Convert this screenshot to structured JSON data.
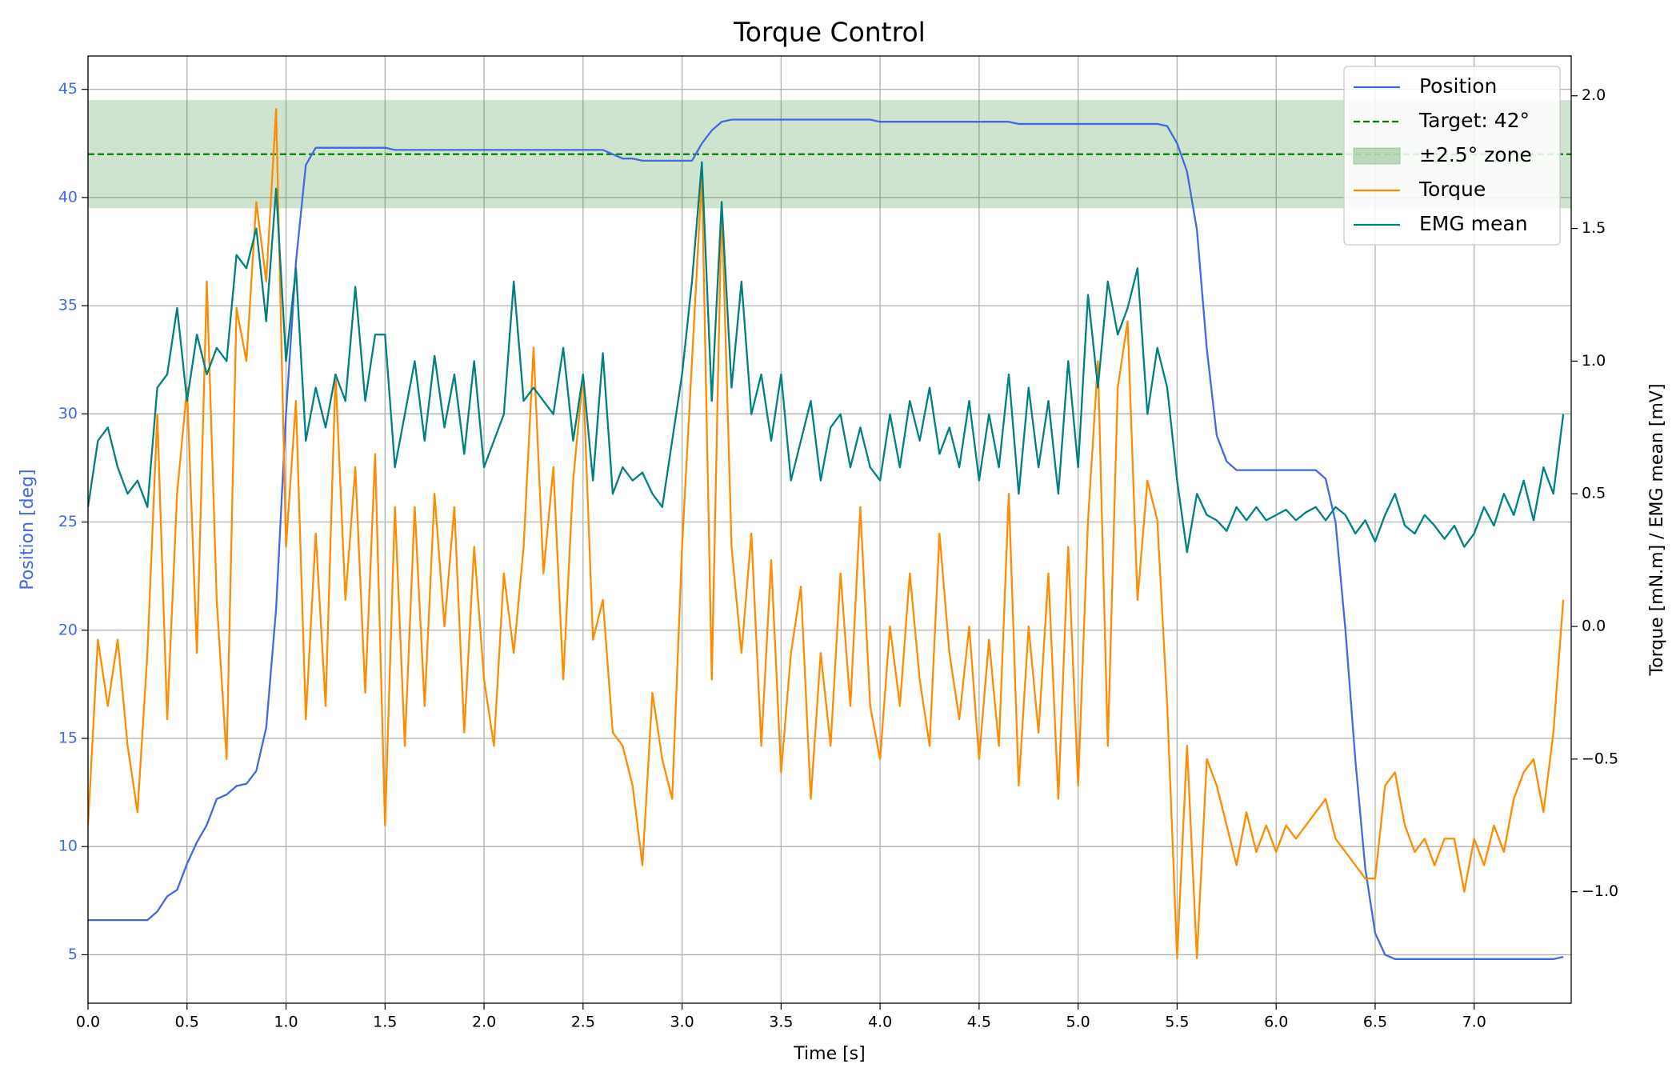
{
  "chart_data": {
    "type": "line",
    "title": "Torque Control",
    "xlabel": "Time [s]",
    "ylabel": "Position [deg]",
    "y2label": "Torque [mN.m] / EMG mean [mV]",
    "xlim": [
      0,
      7.49
    ],
    "ylim": [
      2.76,
      46.54
    ],
    "y2lim": [
      -1.42,
      2.15
    ],
    "xticks": [
      {
        "value": 0,
        "label": "0.0"
      },
      0.5,
      {
        "value": 1,
        "label": "1.0"
      },
      1.5,
      {
        "value": 2,
        "label": "2.0"
      },
      2.5,
      {
        "value": 3,
        "label": "3.0"
      },
      3.5,
      {
        "value": 4,
        "label": "4.0"
      },
      4.5,
      {
        "value": 5,
        "label": "5.0"
      },
      5.5,
      {
        "value": 6,
        "label": "6.0"
      },
      6.5,
      {
        "value": 7,
        "label": "7.0"
      }
    ],
    "yticks": [
      5,
      10,
      15,
      20,
      25,
      30,
      35,
      40,
      45
    ],
    "y2ticks": [
      {
        "value": -1,
        "label": "−1.0"
      },
      {
        "value": -0.5,
        "label": "−0.5"
      },
      {
        "value": 0,
        "label": "0.0"
      },
      0.5,
      {
        "value": 1,
        "label": "1.0"
      },
      1.5,
      {
        "value": 2,
        "label": "2.0"
      }
    ],
    "grid": true,
    "legend": "upper right",
    "zone": {
      "name": "±2.5° zone",
      "range": [
        39.5,
        44.5
      ],
      "color": "#2e8b2e"
    },
    "target": {
      "name": "Target: 42°",
      "value": 42,
      "color": "#008000"
    },
    "x": [
      0,
      0.05,
      0.1,
      0.15,
      0.2,
      0.25,
      0.3,
      0.35,
      0.4,
      0.45,
      0.5,
      0.55,
      0.6,
      0.65,
      0.7,
      0.75,
      0.8,
      0.85,
      0.9,
      0.95,
      1,
      1.05,
      1.1,
      1.15,
      1.2,
      1.25,
      1.3,
      1.35,
      1.4,
      1.45,
      1.5,
      1.55,
      1.6,
      1.65,
      1.7,
      1.75,
      1.8,
      1.85,
      1.9,
      1.95,
      2,
      2.05,
      2.1,
      2.15,
      2.2,
      2.25,
      2.3,
      2.35,
      2.4,
      2.45,
      2.5,
      2.55,
      2.6,
      2.65,
      2.7,
      2.75,
      2.8,
      2.85,
      2.9,
      2.95,
      3,
      3.05,
      3.1,
      3.15,
      3.2,
      3.25,
      3.3,
      3.35,
      3.4,
      3.45,
      3.5,
      3.55,
      3.6,
      3.65,
      3.7,
      3.75,
      3.8,
      3.85,
      3.9,
      3.95,
      4,
      4.05,
      4.1,
      4.15,
      4.2,
      4.25,
      4.3,
      4.35,
      4.4,
      4.45,
      4.5,
      4.55,
      4.6,
      4.65,
      4.7,
      4.75,
      4.8,
      4.85,
      4.9,
      4.95,
      5,
      5.05,
      5.1,
      5.15,
      5.2,
      5.25,
      5.3,
      5.35,
      5.4,
      5.45,
      5.5,
      5.55,
      5.6,
      5.65,
      5.7,
      5.75,
      5.8,
      5.85,
      5.9,
      5.95,
      6,
      6.05,
      6.1,
      6.15,
      6.2,
      6.25,
      6.3,
      6.35,
      6.4,
      6.45,
      6.5,
      6.55,
      6.6,
      6.65,
      6.7,
      6.75,
      6.8,
      6.85,
      6.9,
      6.95,
      7,
      7.05,
      7.1,
      7.15,
      7.2,
      7.25,
      7.3,
      7.35,
      7.4,
      7.45
    ],
    "series": [
      {
        "name": "Position",
        "color": "#4169e1",
        "axis": "y",
        "values": [
          6.6,
          6.6,
          6.6,
          6.6,
          6.6,
          6.6,
          6.6,
          7.0,
          7.7,
          8.0,
          9.2,
          10.2,
          11.0,
          12.2,
          12.4,
          12.8,
          12.9,
          13.5,
          15.5,
          21.0,
          30.0,
          37.0,
          41.5,
          42.3,
          42.3,
          42.3,
          42.3,
          42.3,
          42.3,
          42.3,
          42.3,
          42.2,
          42.2,
          42.2,
          42.2,
          42.2,
          42.2,
          42.2,
          42.2,
          42.2,
          42.2,
          42.2,
          42.2,
          42.2,
          42.2,
          42.2,
          42.2,
          42.2,
          42.2,
          42.2,
          42.2,
          42.2,
          42.2,
          42.0,
          41.8,
          41.8,
          41.7,
          41.7,
          41.7,
          41.7,
          41.7,
          41.7,
          42.5,
          43.1,
          43.5,
          43.6,
          43.6,
          43.6,
          43.6,
          43.6,
          43.6,
          43.6,
          43.6,
          43.6,
          43.6,
          43.6,
          43.6,
          43.6,
          43.6,
          43.6,
          43.5,
          43.5,
          43.5,
          43.5,
          43.5,
          43.5,
          43.5,
          43.5,
          43.5,
          43.5,
          43.5,
          43.5,
          43.5,
          43.5,
          43.4,
          43.4,
          43.4,
          43.4,
          43.4,
          43.4,
          43.4,
          43.4,
          43.4,
          43.4,
          43.4,
          43.4,
          43.4,
          43.4,
          43.4,
          43.3,
          42.5,
          41.2,
          38.5,
          33.0,
          29.0,
          27.8,
          27.4,
          27.4,
          27.4,
          27.4,
          27.4,
          27.4,
          27.4,
          27.4,
          27.4,
          27.0,
          25.0,
          20.0,
          14.0,
          9.0,
          6.0,
          5.0,
          4.8,
          4.8,
          4.8,
          4.8,
          4.8,
          4.8,
          4.8,
          4.8,
          4.8,
          4.8,
          4.8,
          4.8,
          4.8,
          4.8,
          4.8,
          4.8,
          4.8,
          4.9
        ]
      },
      {
        "name": "Torque",
        "color": "#ff8c00",
        "axis": "y2",
        "values": [
          -0.75,
          -0.05,
          -0.3,
          -0.05,
          -0.45,
          -0.7,
          -0.1,
          0.8,
          -0.35,
          0.5,
          0.9,
          -0.1,
          1.3,
          0.1,
          -0.5,
          1.2,
          1.0,
          1.6,
          1.3,
          1.95,
          0.3,
          0.85,
          -0.35,
          0.35,
          -0.3,
          0.95,
          0.1,
          0.6,
          -0.25,
          0.65,
          -0.75,
          0.45,
          -0.45,
          0.45,
          -0.3,
          0.5,
          0.0,
          0.45,
          -0.4,
          0.3,
          -0.2,
          -0.45,
          0.2,
          -0.1,
          0.3,
          1.05,
          0.2,
          0.6,
          -0.2,
          0.55,
          0.95,
          -0.05,
          0.1,
          -0.4,
          -0.45,
          -0.6,
          -0.9,
          -0.25,
          -0.5,
          -0.65,
          0.3,
          1.0,
          1.7,
          -0.2,
          1.6,
          0.3,
          -0.1,
          0.35,
          -0.45,
          0.25,
          -0.55,
          -0.1,
          0.15,
          -0.65,
          -0.1,
          -0.45,
          0.2,
          -0.3,
          0.45,
          -0.3,
          -0.5,
          0.0,
          -0.3,
          0.2,
          -0.2,
          -0.45,
          0.35,
          -0.1,
          -0.35,
          0.0,
          -0.5,
          -0.05,
          -0.45,
          0.5,
          -0.6,
          0.0,
          -0.4,
          0.2,
          -0.65,
          0.3,
          -0.6,
          0.4,
          1.0,
          -0.45,
          0.9,
          1.15,
          0.1,
          0.55,
          0.4,
          -0.3,
          -1.25,
          -0.45,
          -1.25,
          -0.5,
          -0.6,
          -0.75,
          -0.9,
          -0.7,
          -0.85,
          -0.75,
          -0.85,
          -0.75,
          -0.8,
          -0.75,
          -0.7,
          -0.65,
          -0.8,
          -0.85,
          -0.9,
          -0.95,
          -0.95,
          -0.6,
          -0.55,
          -0.75,
          -0.85,
          -0.8,
          -0.9,
          -0.8,
          -0.8,
          -1.0,
          -0.8,
          -0.9,
          -0.75,
          -0.85,
          -0.65,
          -0.55,
          -0.5,
          -0.7,
          -0.4,
          0.1
        ]
      },
      {
        "name": "EMG mean",
        "color": "#008080",
        "axis": "y2",
        "values": [
          0.45,
          0.7,
          0.75,
          0.6,
          0.5,
          0.55,
          0.45,
          0.9,
          0.95,
          1.2,
          0.85,
          1.1,
          0.95,
          1.05,
          1.0,
          1.4,
          1.35,
          1.5,
          1.15,
          1.65,
          1.0,
          1.35,
          0.7,
          0.9,
          0.75,
          0.95,
          0.85,
          1.28,
          0.85,
          1.1,
          1.1,
          0.6,
          0.8,
          1.0,
          0.7,
          1.02,
          0.75,
          0.95,
          0.65,
          1.0,
          0.6,
          0.7,
          0.8,
          1.3,
          0.85,
          0.9,
          0.85,
          0.8,
          1.05,
          0.7,
          0.95,
          0.55,
          1.03,
          0.5,
          0.6,
          0.55,
          0.58,
          0.5,
          0.45,
          0.7,
          0.95,
          1.3,
          1.75,
          0.85,
          1.6,
          0.9,
          1.3,
          0.8,
          0.95,
          0.7,
          0.95,
          0.55,
          0.7,
          0.85,
          0.55,
          0.75,
          0.8,
          0.6,
          0.75,
          0.6,
          0.55,
          0.8,
          0.6,
          0.85,
          0.7,
          0.9,
          0.65,
          0.75,
          0.6,
          0.85,
          0.55,
          0.8,
          0.6,
          0.95,
          0.5,
          0.9,
          0.6,
          0.85,
          0.5,
          1.0,
          0.6,
          1.25,
          0.9,
          1.3,
          1.1,
          1.2,
          1.35,
          0.8,
          1.05,
          0.9,
          0.55,
          0.28,
          0.5,
          0.42,
          0.4,
          0.36,
          0.45,
          0.4,
          0.45,
          0.4,
          0.42,
          0.44,
          0.4,
          0.43,
          0.45,
          0.4,
          0.45,
          0.42,
          0.35,
          0.4,
          0.32,
          0.42,
          0.5,
          0.38,
          0.35,
          0.42,
          0.38,
          0.33,
          0.38,
          0.3,
          0.35,
          0.45,
          0.38,
          0.5,
          0.42,
          0.55,
          0.4,
          0.6,
          0.5,
          0.8
        ]
      }
    ]
  }
}
